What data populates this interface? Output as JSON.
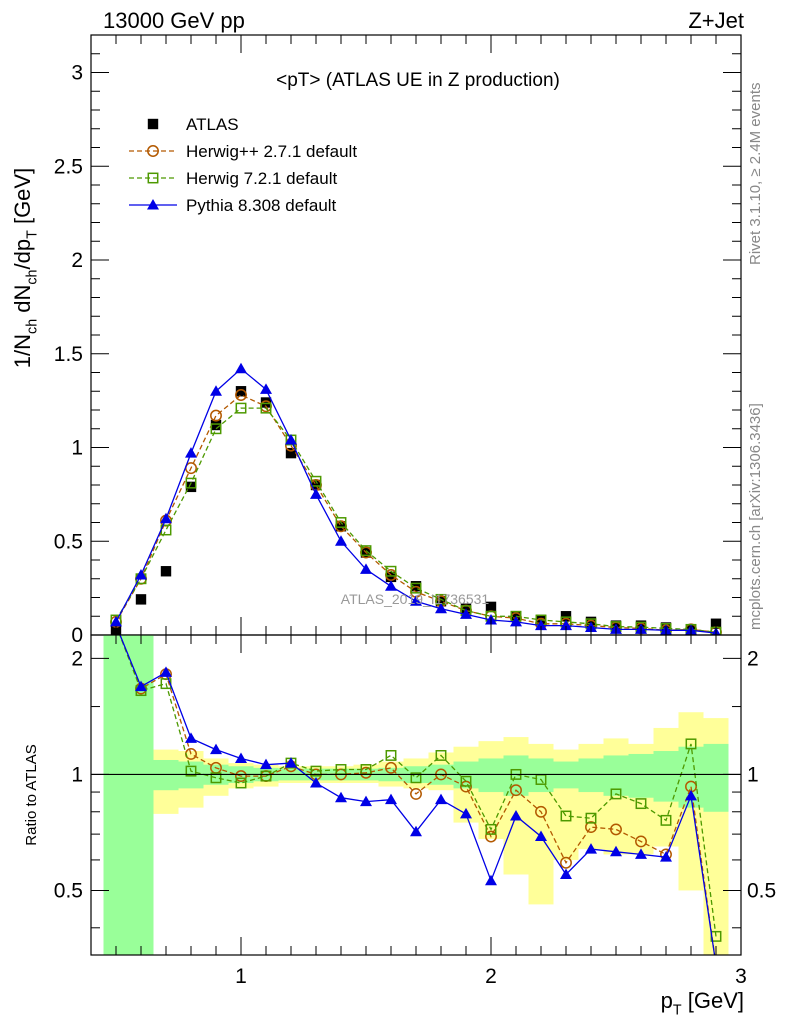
{
  "header": {
    "left": "13000 GeV pp",
    "right": "Z+Jet"
  },
  "side_notes": {
    "rivet": "Rivet 3.1.10, ≥ 2.4M events",
    "mcplots": "mcplots.cern.ch [arXiv:1306.3436]"
  },
  "watermark": "ATLAS_2019_I1736531",
  "chart_data": [
    {
      "type": "scatter",
      "title": "<pT> (ATLAS UE in Z production)",
      "xlabel": "",
      "ylabel": "1/N_ch dN_ch/dp_T [GeV]",
      "xlim": [
        0.4,
        3.0
      ],
      "ylim": [
        0,
        3.2
      ],
      "y_ticks": [
        0,
        0.5,
        1,
        1.5,
        2,
        2.5,
        3
      ],
      "grid": false,
      "legend_position": "top-left",
      "x": [
        0.5,
        0.6,
        0.7,
        0.8,
        0.9,
        1.0,
        1.1,
        1.2,
        1.3,
        1.4,
        1.5,
        1.6,
        1.7,
        1.8,
        1.9,
        2.0,
        2.1,
        2.2,
        2.3,
        2.4,
        2.5,
        2.6,
        2.7,
        2.8,
        2.9
      ],
      "series": [
        {
          "name": "ATLAS",
          "color": "#000000",
          "marker": "filled-square",
          "line": "none",
          "values": [
            0.03,
            0.19,
            0.34,
            0.79,
            1.12,
            1.3,
            1.24,
            0.97,
            0.8,
            0.58,
            0.44,
            0.31,
            0.26,
            0.18,
            0.14,
            0.15,
            0.1,
            0.08,
            0.1,
            0.07,
            0.05,
            0.05,
            0.04,
            0.03,
            0.06
          ]
        },
        {
          "name": "Herwig++ 2.7.1 default",
          "color": "#b35900",
          "marker": "open-circle",
          "line": "dashed",
          "values": [
            0.07,
            0.3,
            0.61,
            0.89,
            1.17,
            1.28,
            1.22,
            1.01,
            0.8,
            0.58,
            0.44,
            0.32,
            0.23,
            0.18,
            0.13,
            0.1,
            0.09,
            0.06,
            0.06,
            0.05,
            0.04,
            0.035,
            0.025,
            0.03,
            0.015
          ]
        },
        {
          "name": "Herwig 7.2.1 default",
          "color": "#4d9900",
          "marker": "open-square",
          "line": "dashed",
          "values": [
            0.08,
            0.3,
            0.56,
            0.81,
            1.1,
            1.21,
            1.21,
            1.04,
            0.82,
            0.6,
            0.45,
            0.34,
            0.25,
            0.19,
            0.13,
            0.1,
            0.1,
            0.08,
            0.07,
            0.06,
            0.045,
            0.042,
            0.035,
            0.03,
            0.015
          ]
        },
        {
          "name": "Pythia 8.308 default",
          "color": "#0000e6",
          "marker": "filled-triangle",
          "line": "solid",
          "values": [
            0.07,
            0.32,
            0.62,
            0.97,
            1.3,
            1.42,
            1.31,
            1.04,
            0.75,
            0.5,
            0.35,
            0.26,
            0.18,
            0.14,
            0.11,
            0.08,
            0.07,
            0.05,
            0.05,
            0.04,
            0.03,
            0.03,
            0.025,
            0.025,
            0.01
          ]
        }
      ]
    },
    {
      "type": "line",
      "title": "",
      "xlabel": "p_T [GeV]",
      "ylabel": "Ratio to ATLAS",
      "xlim": [
        0.4,
        3.0
      ],
      "ylim": [
        0.34,
        2.3
      ],
      "x_ticks": [
        1,
        2,
        3
      ],
      "y_ticks": [
        0.5,
        1,
        2
      ],
      "reference_line": 1,
      "grid": false,
      "bands": {
        "inner_color": "#99ff99",
        "outer_color": "#ffff99",
        "bin_edges": [
          0.45,
          0.55,
          0.65,
          0.75,
          0.85,
          0.95,
          1.05,
          1.15,
          1.25,
          1.35,
          1.45,
          1.55,
          1.65,
          1.75,
          1.85,
          1.95,
          2.05,
          2.15,
          2.25,
          2.35,
          2.45,
          2.55,
          2.65,
          2.75,
          2.85,
          2.95
        ],
        "inner_low": [
          0.3,
          0.3,
          0.91,
          0.92,
          0.94,
          0.95,
          0.96,
          0.965,
          0.965,
          0.965,
          0.965,
          0.96,
          0.95,
          0.94,
          0.92,
          0.9,
          0.88,
          0.9,
          0.92,
          0.9,
          0.88,
          0.87,
          0.85,
          0.82,
          0.8
        ],
        "inner_high": [
          2.3,
          2.3,
          1.09,
          1.08,
          1.06,
          1.05,
          1.04,
          1.035,
          1.035,
          1.035,
          1.035,
          1.04,
          1.05,
          1.06,
          1.08,
          1.1,
          1.12,
          1.1,
          1.08,
          1.1,
          1.12,
          1.13,
          1.15,
          1.18,
          1.2
        ],
        "outer_low": [
          0.3,
          0.3,
          0.79,
          0.82,
          0.88,
          0.92,
          0.93,
          0.95,
          0.95,
          0.95,
          0.95,
          0.93,
          0.92,
          0.91,
          0.75,
          0.68,
          0.55,
          0.46,
          0.6,
          0.64,
          0.62,
          0.62,
          0.65,
          0.5,
          0.3
        ],
        "outer_high": [
          2.3,
          2.3,
          1.16,
          1.15,
          1.1,
          1.07,
          1.06,
          1.05,
          1.05,
          1.05,
          1.06,
          1.08,
          1.1,
          1.14,
          1.18,
          1.22,
          1.25,
          1.2,
          1.16,
          1.2,
          1.24,
          1.2,
          1.32,
          1.45,
          1.4
        ]
      },
      "x": [
        0.5,
        0.6,
        0.7,
        0.8,
        0.9,
        1.0,
        1.1,
        1.2,
        1.3,
        1.4,
        1.5,
        1.6,
        1.7,
        1.8,
        1.9,
        2.0,
        2.1,
        2.2,
        2.3,
        2.4,
        2.5,
        2.6,
        2.7,
        2.8,
        2.9
      ],
      "series": [
        {
          "name": "Herwig++ 2.7.1 default",
          "color": "#b35900",
          "marker": "open-circle",
          "line": "dashed",
          "values": [
            2.5,
            1.67,
            1.82,
            1.13,
            1.04,
            0.99,
            0.99,
            1.05,
            1.0,
            1.0,
            1.01,
            1.04,
            0.89,
            1.0,
            0.93,
            0.69,
            0.91,
            0.8,
            0.59,
            0.73,
            0.72,
            0.67,
            0.62,
            0.93,
            0.2
          ]
        },
        {
          "name": "Herwig 7.2.1 default",
          "color": "#4d9900",
          "marker": "open-square",
          "line": "dashed",
          "values": [
            2.6,
            1.65,
            1.72,
            1.02,
            0.98,
            0.95,
            0.99,
            1.07,
            1.02,
            1.03,
            1.03,
            1.12,
            0.98,
            1.12,
            0.96,
            0.72,
            1.0,
            0.97,
            0.78,
            0.77,
            0.89,
            0.84,
            0.76,
            1.2,
            0.38
          ]
        },
        {
          "name": "Pythia 8.308 default",
          "color": "#0000e6",
          "marker": "filled-triangle",
          "line": "solid",
          "values": [
            2.6,
            1.69,
            1.84,
            1.24,
            1.16,
            1.1,
            1.06,
            1.07,
            0.95,
            0.87,
            0.85,
            0.86,
            0.71,
            0.86,
            0.79,
            0.53,
            0.78,
            0.69,
            0.55,
            0.64,
            0.63,
            0.62,
            0.61,
            0.88,
            0.3
          ]
        }
      ]
    }
  ]
}
